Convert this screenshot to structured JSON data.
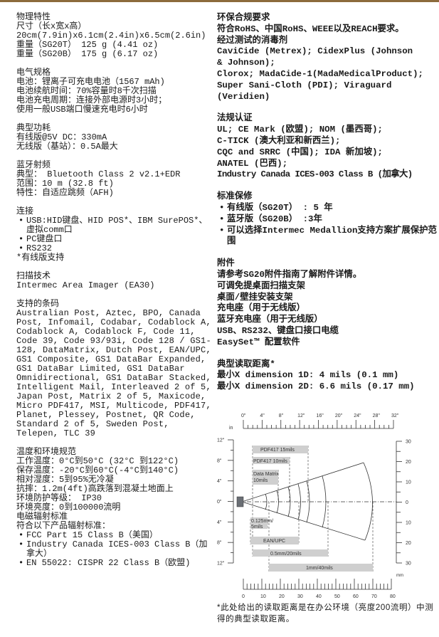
{
  "left": {
    "physical": {
      "title": "物理特性",
      "lines": [
        "尺寸（长x宽x高）",
        "20cm(7.9in)x6.1cm(2.4in)x6.5cm(2.6in)",
        "重量（SG20T） 125 g (4.41 oz)",
        "重量（SG20B） 175 g (6.17 oz)"
      ]
    },
    "electrical": {
      "title": "电气规格",
      "lines": [
        "电池：锂离子可充电电池（1567 mAh)",
        "电池续航时间：70%容量时8千次扫描",
        "电池充电周期：连接外部电源时3小时；",
        "使用一般USB端口慢速充电时6小时"
      ]
    },
    "power": {
      "title": "典型功耗",
      "lines": [
        "有线版@5V DC：330mA",
        "无线版（基站）：0.5A最大"
      ]
    },
    "bluetooth": {
      "title": "蓝牙射频",
      "lines": [
        "典型： Bluetooth Class 2 v2.1+EDR",
        "范围：10 m (32.8 ft)",
        "特性：自适应跳频（AFH)"
      ]
    },
    "connectivity": {
      "title": "连接",
      "bullets": [
        "USB:HID键盘、HID POS*、IBM SurePOS*、虚拟comm口",
        "PC键盘口",
        "RS232"
      ],
      "note": "*有线版支持"
    },
    "scan_tech": {
      "title": "扫描技术",
      "lines": [
        "Intermec Area Imager (EA30)"
      ]
    },
    "symbologies": {
      "title": "支持的条码",
      "text": "Australian Post, Aztec, BPO, Canada Post, Infomail, Codabar, Codablock A, Codablock A, Codablock F, Code 11, Code 39, Code 93/93i, Code 128 / GS1-128, DataMatrix, Dutch Post, EAN/UPC, GS1 Composite, GS1 DataBar Expanded, GS1 DataBar Limited, GS1 DataBar Omnidirectional, GS1 DataBar Stacked, Intelligent Mail, Interleaved 2 of 5, Japan Post, Matrix 2 of 5, Maxicode, Micro PDF417, MSI, Multicode, PDF417, Planet, Plessey, Postnet, QR Code, Standard 2 of 5, Sweden Post, Telepen, TLC 39"
    },
    "environment": {
      "title": "温度和环境规范",
      "lines": [
        "工作温度：0°C到50°C (32°C 到122°C)",
        "保存温度：-20°C到60°C(-4°C到140°C)",
        "相对湿度：5到95%无冷凝",
        "抗摔：1.2m(4ft)高跌落到混凝土地面上",
        "环境防护等级： IP30",
        "环境亮度：0到100000流明",
        "电磁辐射标准",
        "符合以下产品辐射标准："
      ],
      "bullets": [
        "FCC Part 15 Class B（美国）",
        "Industry Canada ICES-003 Class B（加拿大）",
        "EN 55022: CISPR 22 Class B（欧盟)"
      ]
    }
  },
  "right": {
    "compliance": {
      "title": "环保合规要求",
      "lines": [
        "符合RoHS、中国RoHS、WEEE以及REACH要求。",
        "经过测试的消毒剂",
        "CaviCide (Metrex); CidexPlus (Johnson",
        "& Johnson);",
        "Clorox; MadaCide-1(MadaMedicalProduct);",
        "Super Sani-Cloth (PDI); Viraguard",
        "(Veridien)"
      ]
    },
    "regulatory": {
      "title": "法规认证",
      "lines": [
        "UL; CE Mark (欧盟); NOM (墨西哥);",
        "C-TICK (澳大利亚和新西兰);",
        "CQC and SRRC (中国); IDA 新加坡);",
        "ANATEL (巴西);",
        "Industry Canada ICES-003 Class B (加拿大)"
      ]
    },
    "warranty": {
      "title": "标准保修",
      "bullets": [
        "有线版（SG20T） : 5 年",
        "蓝牙版（SG20B） :3年",
        "可以选择Intermec Medallion支持方案扩展保护范围"
      ]
    },
    "accessories": {
      "title": "附件",
      "lines": [
        "请参考SG20附件指南了解附件详情。",
        "可调免提桌面扫描支架",
        "桌面/壁挂安装支架",
        "充电座（用于无线版）",
        "蓝牙充电座（用于无线版）",
        "USB、RS232、键盘口接口电缆",
        "EasySet™ 配置软件"
      ]
    },
    "read_range": {
      "title": "典型读取距离*",
      "lines": [
        "最小X dimension 1D: 4 mils (0.1 mm)",
        "最小X dimension 2D: 6.6 mils (0.17 mm)"
      ]
    }
  },
  "diagram": {
    "top_unit": "in",
    "top_ticks": [
      "0\"",
      "4\"",
      "8\"",
      "12\"",
      "16\"",
      "20\"",
      "24\"",
      "28\"",
      "32\""
    ],
    "left_ticks": [
      "12\"",
      "8\"",
      "4\"",
      "0\"",
      "4\"",
      "8\"",
      "12\""
    ],
    "right_ticks": [
      "30",
      "20",
      "10",
      "0",
      "10",
      "20",
      "30"
    ],
    "bottom_unit": "mm",
    "bottom_ticks": [
      "0",
      "10",
      "20",
      "30",
      "40",
      "50",
      "60",
      "70",
      "80"
    ],
    "labels": [
      "PDF417 15mils",
      "PDF417 10mils",
      "Data Matrix",
      "10mils",
      "0.125mm/",
      "5mils",
      "EAN/UPC",
      "0.5mm/20mils",
      "1mm/40mils"
    ],
    "colors": {
      "box": "#cfcfcf",
      "scanner": "#6a6e74"
    }
  },
  "footnote": "*此处给出的读取距离是在办公环境（亮度200流明）中测得的典型读取距离。"
}
